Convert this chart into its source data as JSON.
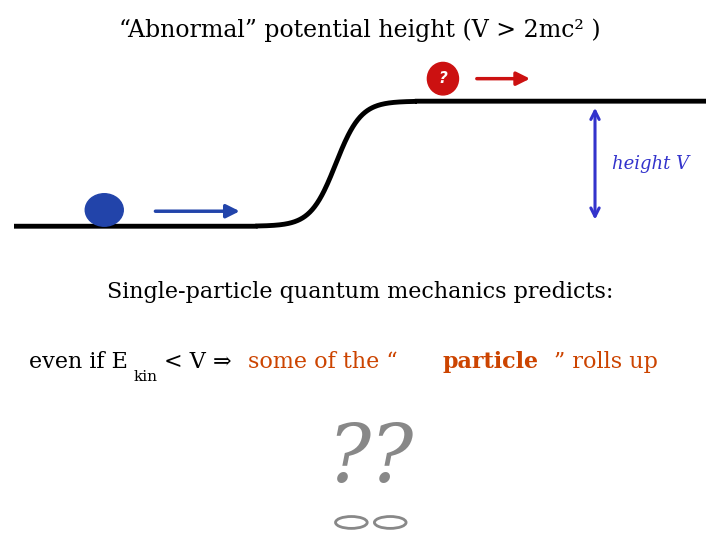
{
  "bg_color": "#ffffff",
  "title": "“Abnormal” potential height (V > 2mc² )",
  "line_color": "#000000",
  "line_lw": 3.5,
  "blue_ball_color": "#2244aa",
  "red_ball_color": "#cc1111",
  "arrow_blue_color": "#2244aa",
  "arrow_red_color": "#cc1111",
  "height_color": "#3333cc",
  "text_color": "#000000",
  "orange_color": "#cc4400",
  "qmark_color": "#888888",
  "text1": "Single-particle quantum mechanics predicts:",
  "text2_black": "even if E",
  "text2_kin": "kin",
  "text2_black2": "< V ⇒ ",
  "text2_orange1": "some of the “",
  "text2_bold": "particle",
  "text2_orange2": "” rolls up",
  "height_label": "height V"
}
